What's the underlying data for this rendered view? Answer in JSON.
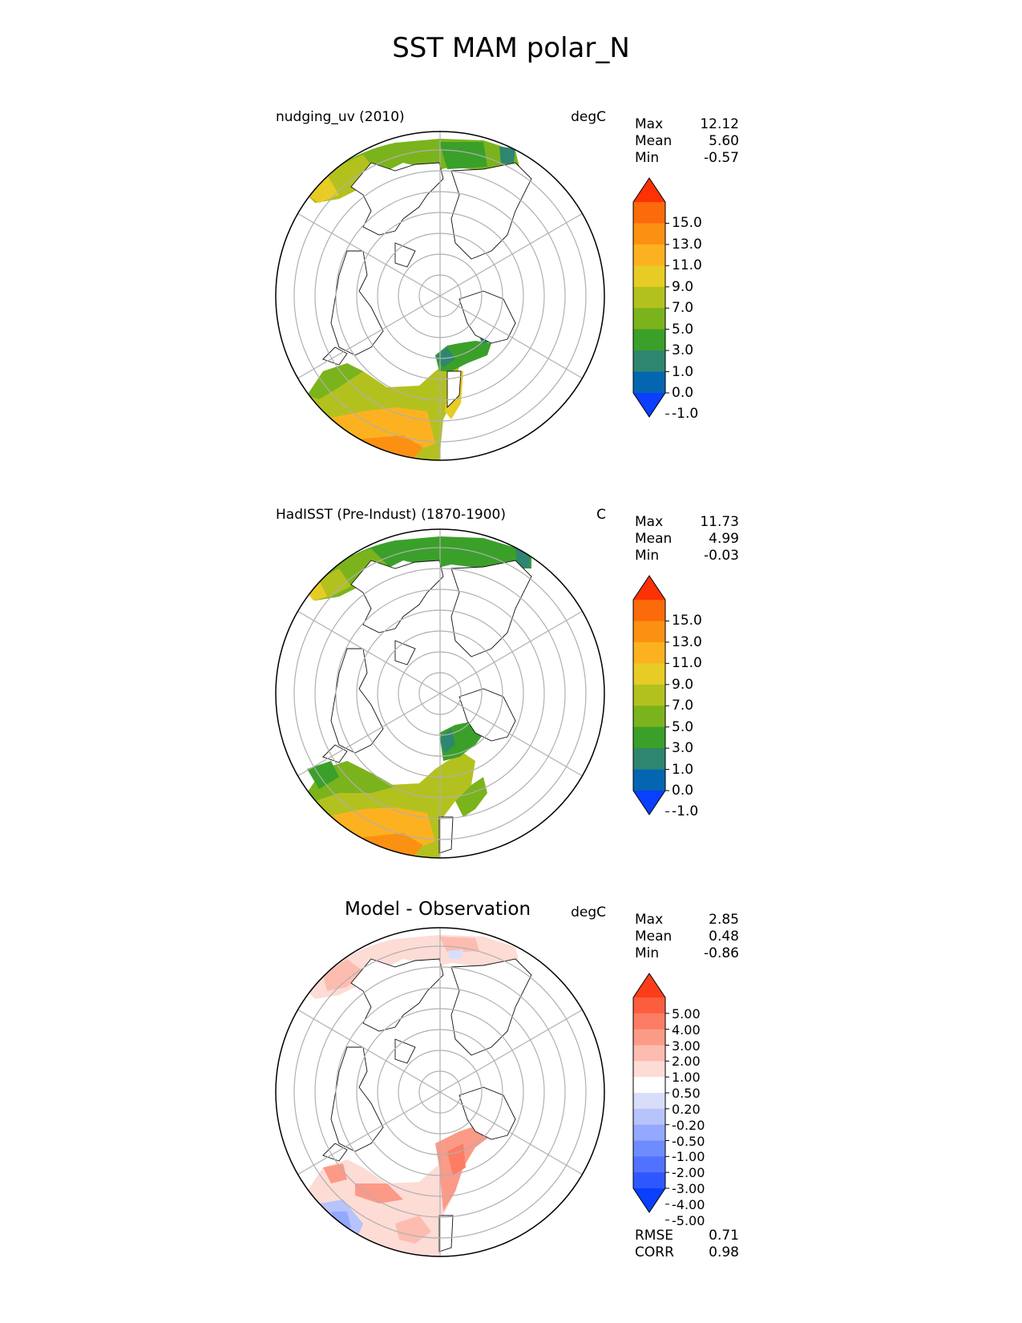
{
  "title": "SST MAM polar_N",
  "panels": [
    {
      "id": "model",
      "left_title": "nudging_uv (2010)",
      "units": "degC",
      "stats": [
        {
          "label": "Max",
          "value": "12.12"
        },
        {
          "label": "Mean",
          "value": "5.60"
        },
        {
          "label": "Min",
          "value": "-0.57"
        }
      ],
      "colorbar": {
        "colors": [
          "#0a3fff",
          "#0466b0",
          "#2f8670",
          "#3aa02a",
          "#7bb31c",
          "#b3c11f",
          "#e8cc26",
          "#fcb220",
          "#fc9012",
          "#fb6a0b",
          "#fc3105"
        ],
        "labels": [
          "15.0",
          "13.0",
          "11.0",
          "9.0",
          "7.0",
          "5.0",
          "3.0",
          "1.0",
          "0.0",
          "-1.0"
        ]
      }
    },
    {
      "id": "obs",
      "left_title": "HadISST (Pre-Indust) (1870-1900)",
      "units": "C",
      "stats": [
        {
          "label": "Max",
          "value": "11.73"
        },
        {
          "label": "Mean",
          "value": "4.99"
        },
        {
          "label": "Min",
          "value": "-0.03"
        }
      ],
      "colorbar": {
        "colors": [
          "#0a3fff",
          "#0466b0",
          "#2f8670",
          "#3aa02a",
          "#7bb31c",
          "#b3c11f",
          "#e8cc26",
          "#fcb220",
          "#fc9012",
          "#fb6a0b",
          "#fc3105"
        ],
        "labels": [
          "15.0",
          "13.0",
          "11.0",
          "9.0",
          "7.0",
          "5.0",
          "3.0",
          "1.0",
          "0.0",
          "-1.0"
        ]
      }
    },
    {
      "id": "diff",
      "center_title": "Model - Observation",
      "units": "degC",
      "stats": [
        {
          "label": "Max",
          "value": "2.85"
        },
        {
          "label": "Mean",
          "value": "0.48"
        },
        {
          "label": "Min",
          "value": "-0.86"
        }
      ],
      "colorbar": {
        "colors": [
          "#0a3fff",
          "#2f57ff",
          "#5072ff",
          "#6f8cff",
          "#93a8fe",
          "#b7c3fb",
          "#d8defa",
          "#ffffff",
          "#fddcd6",
          "#fdbcb0",
          "#fc9a88",
          "#fc7d63",
          "#fb5e3f",
          "#fb3d1a"
        ],
        "labels": [
          "5.00",
          "4.00",
          "3.00",
          "2.00",
          "1.00",
          "0.50",
          "0.20",
          "-0.20",
          "-0.50",
          "-1.00",
          "-2.00",
          "-3.00",
          "-4.00",
          "-5.00"
        ]
      },
      "metrics": [
        {
          "label": "RMSE",
          "value": "0.71"
        },
        {
          "label": "CORR",
          "value": "0.98"
        }
      ]
    }
  ]
}
